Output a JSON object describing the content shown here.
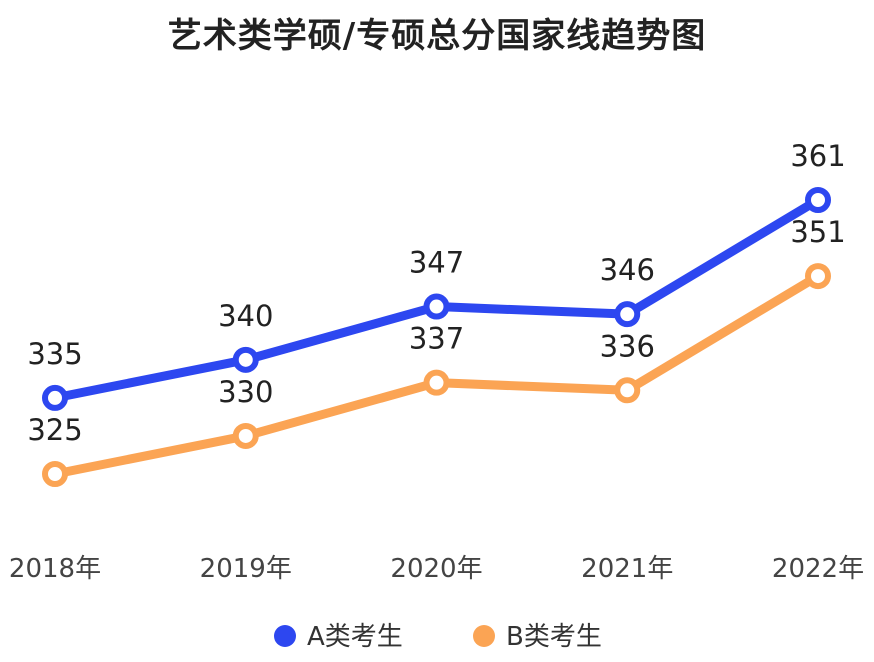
{
  "chart_data": {
    "type": "line",
    "title": "艺术类学硕/专硕总分国家线趋势图",
    "categories": [
      "2018年",
      "2019年",
      "2020年",
      "2021年",
      "2022年"
    ],
    "series": [
      {
        "name": "A类考生",
        "color": "#2d47f0",
        "values": [
          335,
          340,
          347,
          346,
          361
        ]
      },
      {
        "name": "B类考生",
        "color": "#fba454",
        "values": [
          325,
          330,
          337,
          336,
          351
        ]
      }
    ],
    "xlabel": "",
    "ylabel": "",
    "grid": false,
    "legend": "bottom-center"
  }
}
